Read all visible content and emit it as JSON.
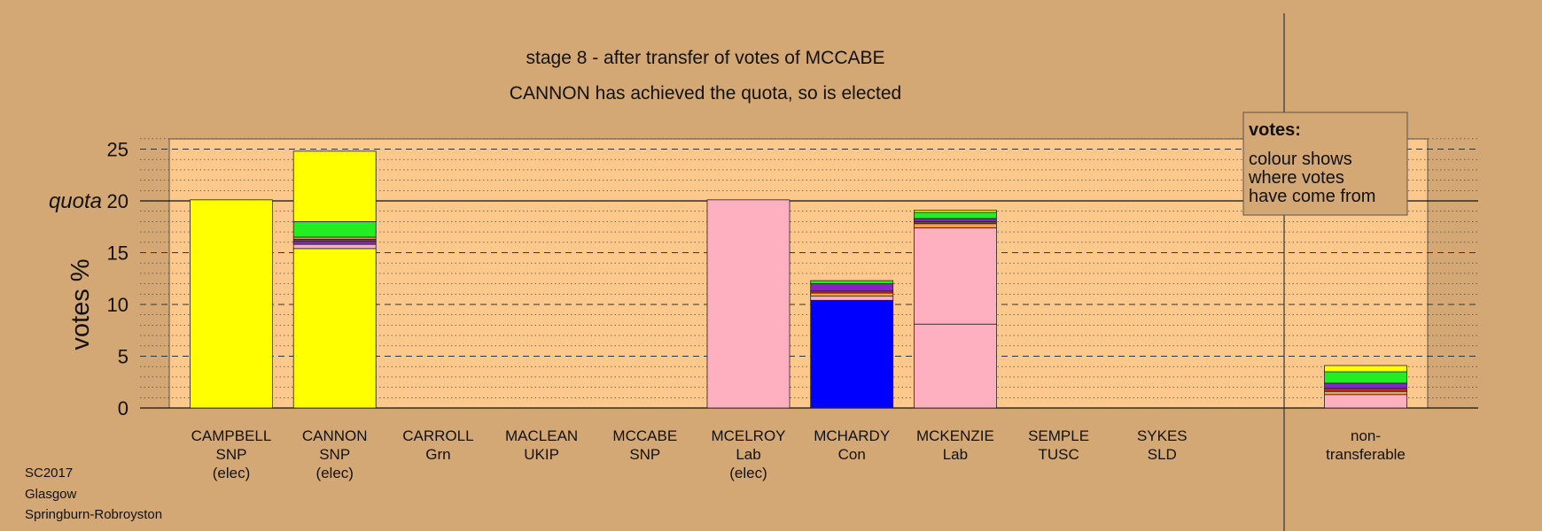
{
  "chart_data": {
    "type": "bar",
    "stacked": true,
    "title_line1": "stage 8 - after transfer of votes of MCCABE",
    "title_line2": "CANNON has achieved the quota, so is elected",
    "ylabel": "votes %",
    "ylim": [
      0,
      26
    ],
    "yticks": [
      0,
      5,
      10,
      15,
      20,
      25
    ],
    "quota": 20,
    "quota_label": "quota",
    "grid": "dashed every 5, dotted every 1",
    "legend": {
      "title": "votes:",
      "lines": [
        "colour shows",
        "where votes",
        "have come from"
      ]
    },
    "footer": [
      "SC2017",
      "Glasgow",
      "Springburn-Robroyston"
    ],
    "colors": {
      "SNP": "#ffff00",
      "Lab": "#ffb0c0",
      "Con": "#0000ff",
      "Grn": "#22ee22",
      "UKIP": "#8822cc",
      "TUSC": "#cc2222",
      "SLD": "#ffa040"
    },
    "candidates": [
      {
        "name": "CAMPBELL",
        "party": "SNP",
        "status": "(elec)",
        "segments": [
          {
            "from": "SNP",
            "value": 20.1
          }
        ]
      },
      {
        "name": "CANNON",
        "party": "SNP",
        "status": "(elec)",
        "segments": [
          {
            "from": "SNP",
            "value": 15.4
          },
          {
            "from": "Lab",
            "value": 0.4
          },
          {
            "from": "UKIP",
            "value": 0.3
          },
          {
            "from": "TUSC",
            "value": 0.2
          },
          {
            "from": "SLD",
            "value": 0.2
          },
          {
            "from": "Grn",
            "value": 1.5
          },
          {
            "from": "SNP",
            "value": 6.8
          }
        ]
      },
      {
        "name": "CARROLL",
        "party": "Grn",
        "status": "",
        "segments": []
      },
      {
        "name": "MACLEAN",
        "party": "UKIP",
        "status": "",
        "segments": []
      },
      {
        "name": "MCCABE",
        "party": "SNP",
        "status": "",
        "segments": []
      },
      {
        "name": "MCELROY",
        "party": "Lab",
        "status": "(elec)",
        "segments": [
          {
            "from": "Lab",
            "value": 20.1
          }
        ]
      },
      {
        "name": "MCHARDY",
        "party": "Con",
        "status": "",
        "segments": [
          {
            "from": "Con",
            "value": 10.4
          },
          {
            "from": "Lab",
            "value": 0.4
          },
          {
            "from": "SLD",
            "value": 0.3
          },
          {
            "from": "TUSC",
            "value": 0.2
          },
          {
            "from": "UKIP",
            "value": 0.7
          },
          {
            "from": "Grn",
            "value": 0.3
          }
        ]
      },
      {
        "name": "MCKENZIE",
        "party": "Lab",
        "status": "",
        "segments": [
          {
            "from": "Lab",
            "value": 8.1
          },
          {
            "from": "Lab",
            "value": 9.3
          },
          {
            "from": "SLD",
            "value": 0.4
          },
          {
            "from": "TUSC",
            "value": 0.2
          },
          {
            "from": "UKIP",
            "value": 0.3
          },
          {
            "from": "Grn",
            "value": 0.6
          },
          {
            "from": "SNP",
            "value": 0.2
          }
        ]
      },
      {
        "name": "SEMPLE",
        "party": "TUSC",
        "status": "",
        "segments": []
      },
      {
        "name": "SYKES",
        "party": "SLD",
        "status": "",
        "segments": []
      }
    ],
    "nontransferable": {
      "label_line1": "non-",
      "label_line2": "transferable",
      "segments": [
        {
          "from": "Lab",
          "value": 1.3
        },
        {
          "from": "SLD",
          "value": 0.3
        },
        {
          "from": "TUSC",
          "value": 0.3
        },
        {
          "from": "UKIP",
          "value": 0.5
        },
        {
          "from": "Grn",
          "value": 1.1
        },
        {
          "from": "SNP",
          "value": 0.6
        }
      ]
    }
  }
}
